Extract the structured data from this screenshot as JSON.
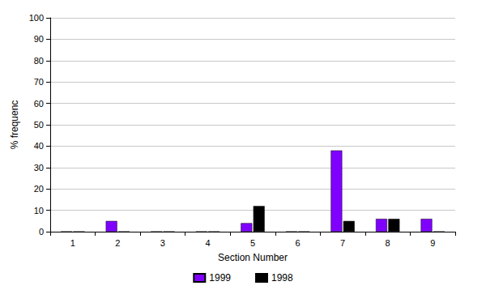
{
  "chart_data": {
    "type": "bar",
    "x_label": "Section Number",
    "y_label": "% frequenc",
    "categories": [
      "1",
      "2",
      "3",
      "4",
      "5",
      "6",
      "7",
      "8",
      "9"
    ],
    "series": [
      {
        "name": "1999",
        "color": "#8000ff",
        "values": [
          0,
          5,
          0,
          0,
          4,
          0,
          38,
          6,
          6
        ]
      },
      {
        "name": "1998",
        "color": "#000000",
        "values": [
          0,
          0,
          0,
          0,
          12,
          0,
          5,
          6,
          0
        ]
      }
    ],
    "ylim": [
      0,
      100
    ],
    "yticks": [
      0,
      10,
      20,
      30,
      40,
      50,
      60,
      70,
      80,
      90,
      100
    ],
    "grid": true,
    "legend": "bottom"
  }
}
